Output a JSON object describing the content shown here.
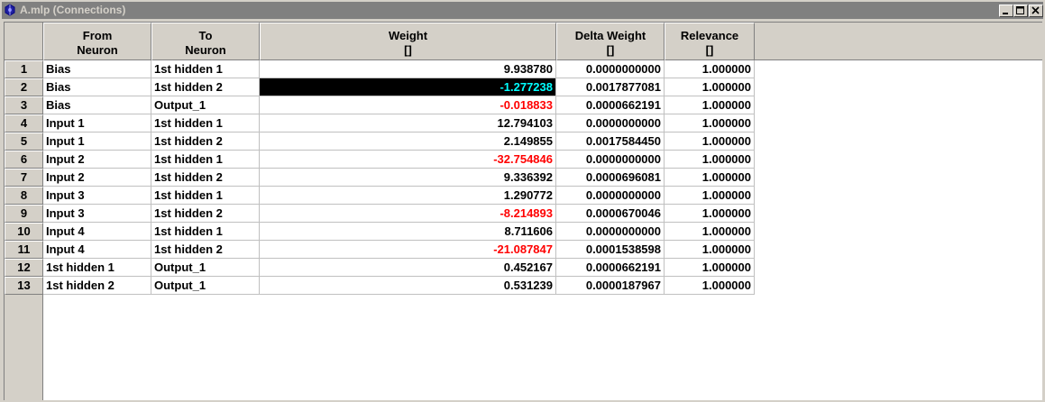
{
  "window": {
    "title": "A.mlp (Connections)",
    "icon": "app-icon",
    "controls": {
      "minimize": "minimize-icon",
      "maximize": "maximize-icon",
      "close": "close-icon"
    }
  },
  "colors": {
    "negative": "#ff0000",
    "selected_bg": "#000000",
    "selected_fg": "#00ffff"
  },
  "columns": [
    {
      "line1": "From",
      "line2": "Neuron"
    },
    {
      "line1": "To",
      "line2": "Neuron"
    },
    {
      "line1": "Weight",
      "line2": "[]"
    },
    {
      "line1": "Delta Weight",
      "line2": "[]"
    },
    {
      "line1": "Relevance",
      "line2": "[]"
    }
  ],
  "rows": [
    {
      "num": "1",
      "from": "Bias",
      "to": "1st hidden 1",
      "weight": "9.938780",
      "delta": "0.0000000000",
      "relevance": "1.000000"
    },
    {
      "num": "2",
      "from": "Bias",
      "to": "1st hidden 2",
      "weight": "-1.277238",
      "delta": "0.0017877081",
      "relevance": "1.000000"
    },
    {
      "num": "3",
      "from": "Bias",
      "to": "Output_1",
      "weight": "-0.018833",
      "delta": "0.0000662191",
      "relevance": "1.000000"
    },
    {
      "num": "4",
      "from": "Input 1",
      "to": "1st hidden 1",
      "weight": "12.794103",
      "delta": "0.0000000000",
      "relevance": "1.000000"
    },
    {
      "num": "5",
      "from": "Input 1",
      "to": "1st hidden 2",
      "weight": "2.149855",
      "delta": "0.0017584450",
      "relevance": "1.000000"
    },
    {
      "num": "6",
      "from": "Input 2",
      "to": "1st hidden 1",
      "weight": "-32.754846",
      "delta": "0.0000000000",
      "relevance": "1.000000"
    },
    {
      "num": "7",
      "from": "Input 2",
      "to": "1st hidden 2",
      "weight": "9.336392",
      "delta": "0.0000696081",
      "relevance": "1.000000"
    },
    {
      "num": "8",
      "from": "Input 3",
      "to": "1st hidden 1",
      "weight": "1.290772",
      "delta": "0.0000000000",
      "relevance": "1.000000"
    },
    {
      "num": "9",
      "from": "Input 3",
      "to": "1st hidden 2",
      "weight": "-8.214893",
      "delta": "0.0000670046",
      "relevance": "1.000000"
    },
    {
      "num": "10",
      "from": "Input 4",
      "to": "1st hidden 1",
      "weight": "8.711606",
      "delta": "0.0000000000",
      "relevance": "1.000000"
    },
    {
      "num": "11",
      "from": "Input 4",
      "to": "1st hidden 2",
      "weight": "-21.087847",
      "delta": "0.0001538598",
      "relevance": "1.000000"
    },
    {
      "num": "12",
      "from": "1st hidden 1",
      "to": "Output_1",
      "weight": "0.452167",
      "delta": "0.0000662191",
      "relevance": "1.000000"
    },
    {
      "num": "13",
      "from": "1st hidden 2",
      "to": "Output_1",
      "weight": "0.531239",
      "delta": "0.0000187967",
      "relevance": "1.000000"
    }
  ],
  "selected_row": "2"
}
